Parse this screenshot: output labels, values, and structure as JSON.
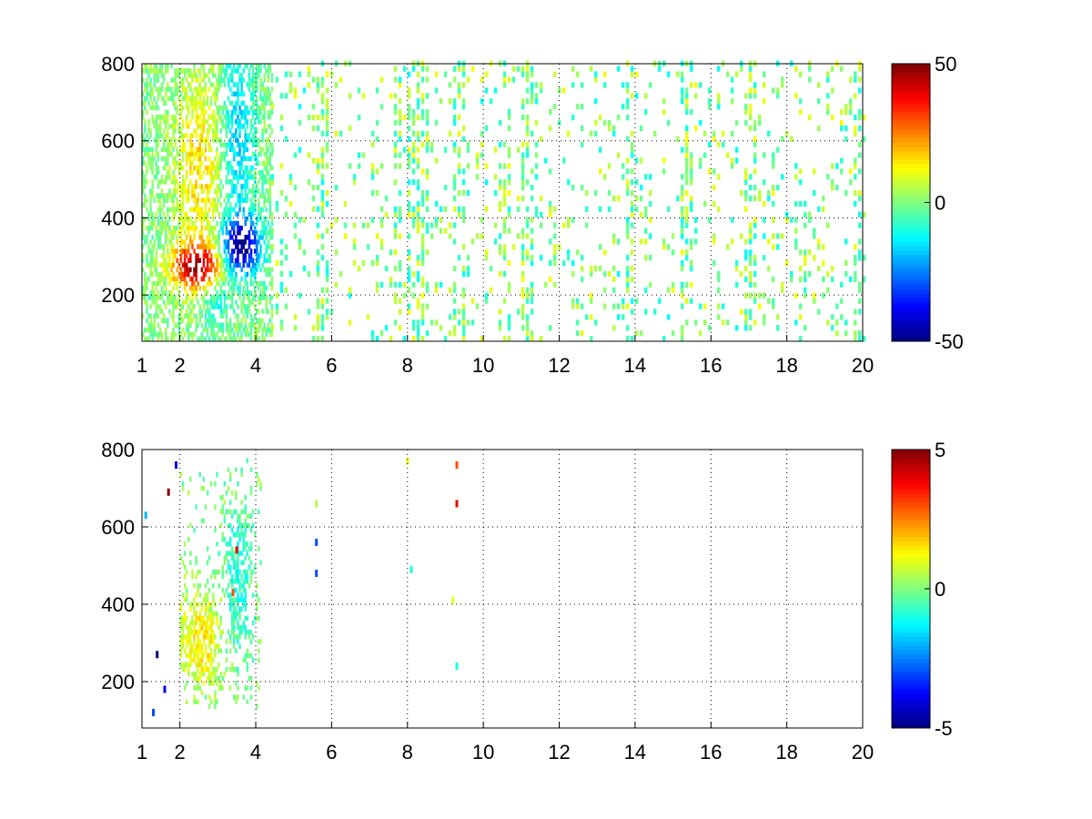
{
  "chart_data": [
    {
      "type": "heatmap",
      "title": "",
      "xlabel": "",
      "ylabel": "",
      "xlim": [
        1,
        20
      ],
      "ylim": [
        80,
        800
      ],
      "xticks": [
        1,
        2,
        4,
        6,
        8,
        10,
        12,
        14,
        16,
        18,
        20
      ],
      "yticks": [
        200,
        400,
        600,
        800
      ],
      "grid": true,
      "colormap": "jet",
      "clim": [
        -50,
        50
      ],
      "colorbar_ticks": [
        -50,
        0,
        50
      ],
      "colorbar_labels": [
        "-50",
        "0",
        "50"
      ],
      "blobs": [
        {
          "x": 2.4,
          "y": 270,
          "value": 45,
          "sx": 0.45,
          "sy": 40
        },
        {
          "x": 2.5,
          "y": 520,
          "value": 15,
          "sx": 0.45,
          "sy": 170
        },
        {
          "x": 3.6,
          "y": 320,
          "value": -48,
          "sx": 0.35,
          "sy": 50
        },
        {
          "x": 3.5,
          "y": 600,
          "value": -18,
          "sx": 0.3,
          "sy": 180
        },
        {
          "x": 2.9,
          "y": 170,
          "value": -12,
          "sx": 0.25,
          "sy": 40
        }
      ],
      "dense_region": {
        "x": [
          1,
          4.4
        ],
        "y": [
          80,
          800
        ]
      },
      "streak_columns": [
        5.7,
        7.7,
        8.1,
        8.4,
        9.3,
        10.6,
        11.1,
        13.8,
        15.3,
        17.0,
        19.8
      ],
      "sparse_region": {
        "x": [
          4.4,
          20
        ],
        "y": [
          80,
          800
        ],
        "density": 0.14,
        "value_range": [
          -12,
          12
        ]
      }
    },
    {
      "type": "heatmap",
      "title": "",
      "xlabel": "",
      "ylabel": "",
      "xlim": [
        1,
        20
      ],
      "ylim": [
        80,
        800
      ],
      "xticks": [
        1,
        2,
        4,
        6,
        8,
        10,
        12,
        14,
        16,
        18,
        20
      ],
      "yticks": [
        200,
        400,
        600,
        800
      ],
      "grid": true,
      "colormap": "jet",
      "clim": [
        -5,
        5
      ],
      "colorbar_ticks": [
        -5,
        0,
        5
      ],
      "colorbar_labels": [
        "-5",
        "0",
        "5"
      ],
      "blobs": [
        {
          "x": 2.5,
          "y": 300,
          "value": 1.5,
          "sx": 0.4,
          "sy": 90
        },
        {
          "x": 3.5,
          "y": 450,
          "value": -1.0,
          "sx": 0.25,
          "sy": 150
        }
      ],
      "dense_region": {
        "x": [
          2.0,
          4.1
        ],
        "y": [
          130,
          770
        ]
      },
      "isolated_cells": [
        {
          "x": 1.7,
          "y": 690,
          "value": 5
        },
        {
          "x": 1.9,
          "y": 760,
          "value": -4
        },
        {
          "x": 1.4,
          "y": 270,
          "value": -5
        },
        {
          "x": 1.6,
          "y": 180,
          "value": -4
        },
        {
          "x": 1.3,
          "y": 120,
          "value": -3
        },
        {
          "x": 1.1,
          "y": 630,
          "value": -2
        },
        {
          "x": 5.6,
          "y": 560,
          "value": -3
        },
        {
          "x": 5.6,
          "y": 480,
          "value": -3
        },
        {
          "x": 5.6,
          "y": 660,
          "value": 0.5
        },
        {
          "x": 9.3,
          "y": 760,
          "value": 3
        },
        {
          "x": 9.3,
          "y": 660,
          "value": 4
        },
        {
          "x": 8.1,
          "y": 490,
          "value": -1
        },
        {
          "x": 8.0,
          "y": 770,
          "value": 1
        },
        {
          "x": 9.2,
          "y": 410,
          "value": 1
        },
        {
          "x": 9.3,
          "y": 240,
          "value": -1
        },
        {
          "x": 3.5,
          "y": 540,
          "value": 4
        },
        {
          "x": 3.4,
          "y": 430,
          "value": 3
        }
      ]
    }
  ]
}
